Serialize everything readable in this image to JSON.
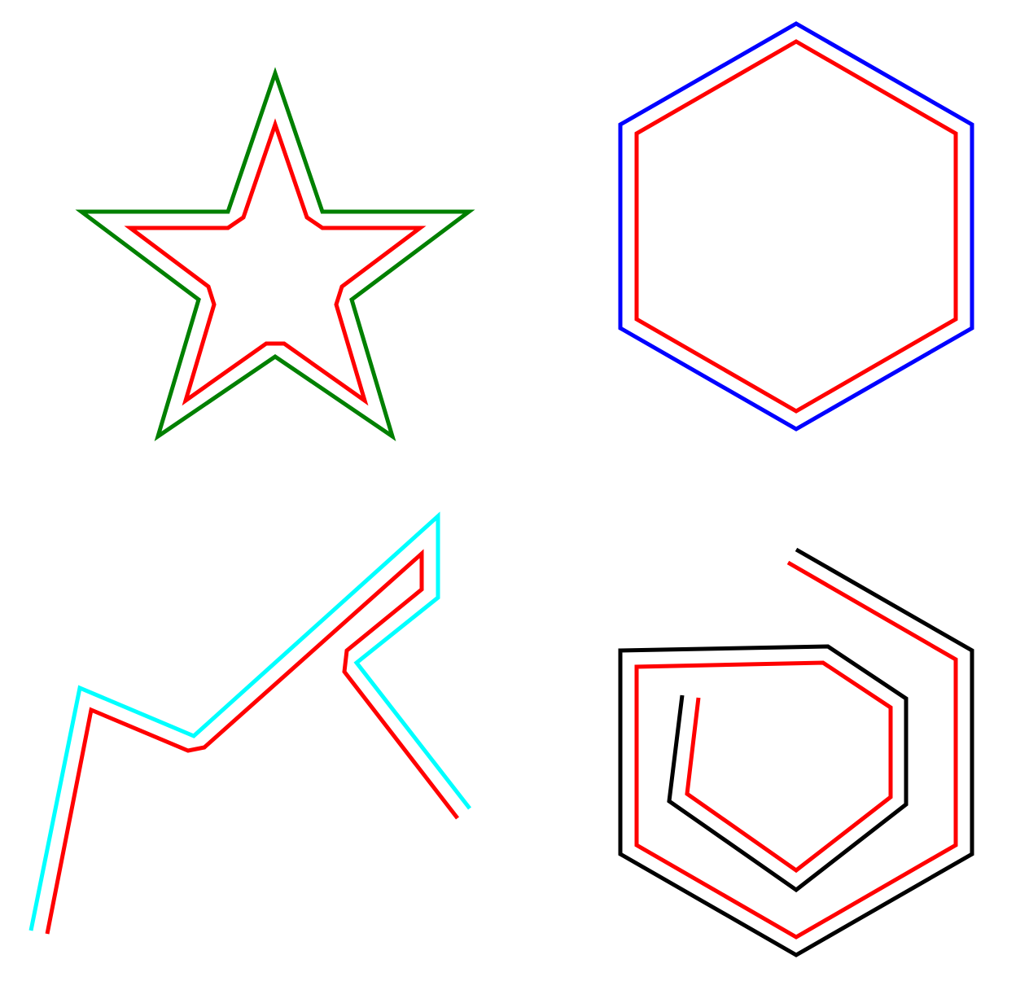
{
  "colors": {
    "background": "#ffffff",
    "star_outer": "#008000",
    "star_inner": "#ff0000",
    "hexagon_outer": "#0000ff",
    "hexagon_inner": "#ff0000",
    "zigzag_outer": "#00ffff",
    "zigzag_inner": "#ff0000",
    "spiral_outer": "#000000",
    "spiral_inner": "#ff0000"
  },
  "shapes": [
    {
      "name": "star",
      "kind": "closed",
      "outer_color": "star_outer",
      "inner_color": "star_inner"
    },
    {
      "name": "hexagon",
      "kind": "closed",
      "outer_color": "hexagon_outer",
      "inner_color": "hexagon_inner"
    },
    {
      "name": "zigzag",
      "kind": "open",
      "outer_color": "zigzag_outer",
      "inner_color": "zigzag_inner"
    },
    {
      "name": "spiral",
      "kind": "open",
      "outer_color": "spiral_outer",
      "inner_color": "spiral_inner"
    }
  ]
}
